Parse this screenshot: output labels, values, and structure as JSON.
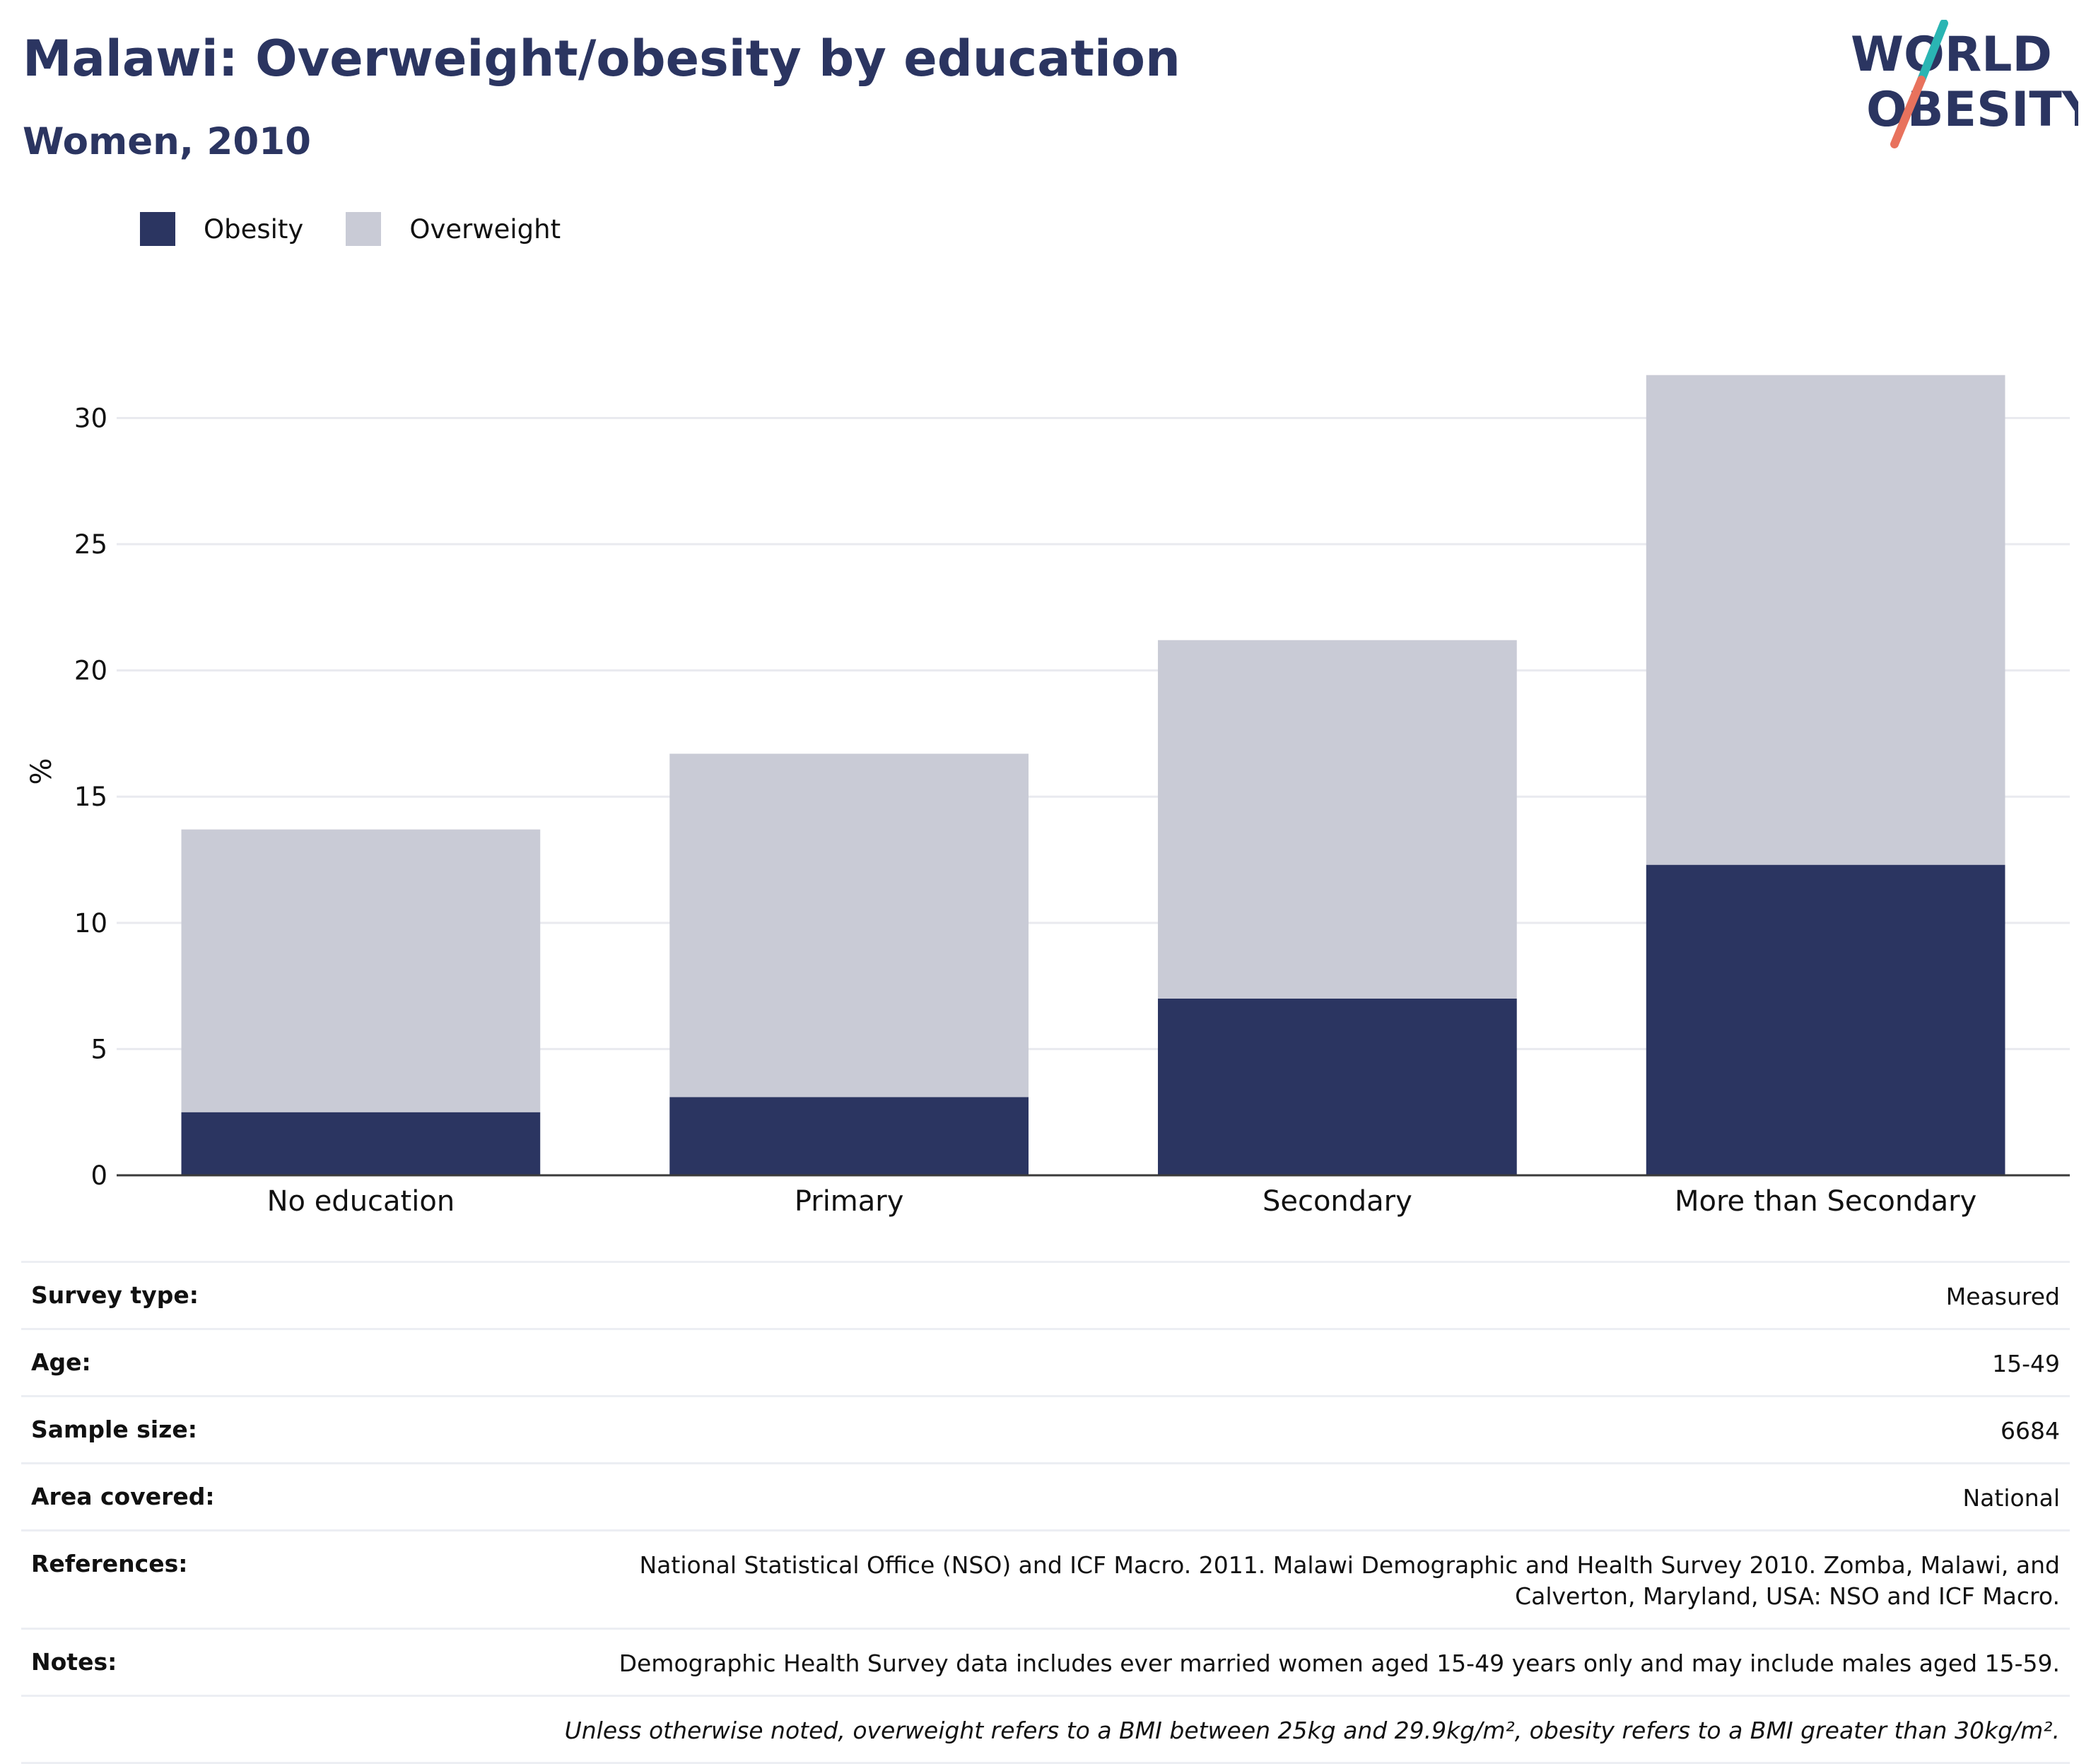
{
  "header": {
    "title": "Malawi: Overweight/obesity by education",
    "subtitle": "Women, 2010"
  },
  "logo": {
    "line1": "WORLD",
    "line2": "OBESITY",
    "colors": {
      "text": "#2b3561",
      "slash_top": "#2ab5b3",
      "slash_bottom": "#e8725d"
    }
  },
  "legend": [
    {
      "label": "Obesity",
      "color": "#2b3561"
    },
    {
      "label": "Overweight",
      "color": "#c9cbd6"
    }
  ],
  "chart_data": {
    "type": "bar",
    "stacked": true,
    "title": "Malawi: Overweight/obesity by education",
    "subtitle": "Women, 2010",
    "xlabel": "",
    "ylabel": "%",
    "categories": [
      "No education",
      "Primary",
      "Secondary",
      "More than Secondary"
    ],
    "series": [
      {
        "name": "Obesity",
        "values": [
          2.5,
          3.1,
          7.0,
          12.3
        ],
        "color": "#2b3561"
      },
      {
        "name": "Overweight",
        "values": [
          11.2,
          13.6,
          14.2,
          19.4
        ],
        "color": "#c9cbd6"
      }
    ],
    "ylim": [
      0,
      32
    ],
    "yticks": [
      0,
      5,
      10,
      15,
      20,
      25,
      30
    ],
    "grid": true,
    "legend_position": "top-left"
  },
  "info": [
    {
      "key": "Survey type:",
      "value": "Measured"
    },
    {
      "key": "Age:",
      "value": "15-49"
    },
    {
      "key": "Sample size:",
      "value": "6684"
    },
    {
      "key": "Area covered:",
      "value": "National"
    },
    {
      "key": "References:",
      "value": "National Statistical Office (NSO) and ICF Macro. 2011. Malawi Demographic and Health Survey 2010. Zomba, Malawi, and Calverton, Maryland, USA: NSO and ICF Macro."
    },
    {
      "key": "Notes:",
      "value": "Demographic Health Survey data includes ever married women aged 15-49 years only and may include males aged 15-59."
    },
    {
      "key": "",
      "value": "Unless otherwise noted, overweight refers to a BMI between 25kg and 29.9kg/m², obesity refers to a BMI greater than 30kg/m²."
    }
  ]
}
